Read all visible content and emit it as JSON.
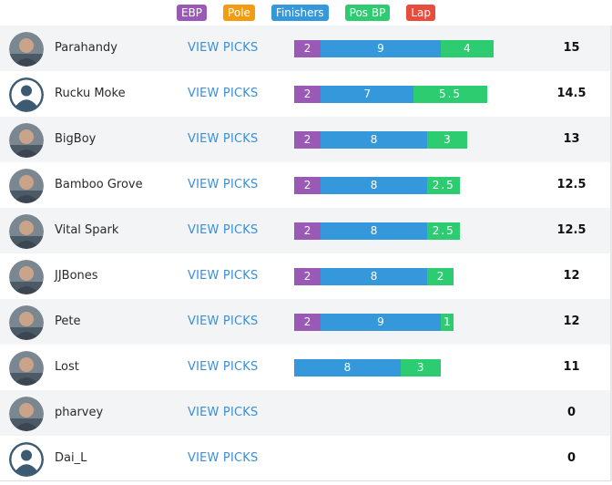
{
  "legend": [
    {
      "label": "EBP",
      "color": "#9b59b6"
    },
    {
      "label": "Pole",
      "color": "#f39c12"
    },
    {
      "label": "Finishers",
      "color": "#3498db"
    },
    {
      "label": "Pos BP",
      "color": "#2ecc71"
    },
    {
      "label": "Lap",
      "color": "#e74c3c"
    }
  ],
  "view_picks_label": "VIEW PICKS",
  "rows": [
    {
      "name": "Parahandy",
      "avatar": "photo-avatar",
      "score": "15",
      "segments": [
        {
          "type": "EBP",
          "label": "2",
          "value": 2
        },
        {
          "type": "Finishers",
          "label": "9",
          "value": 9
        },
        {
          "type": "Pos BP",
          "label": "4",
          "value": 4
        }
      ]
    },
    {
      "name": "Rucku Moke",
      "avatar": "default-avatar",
      "score": "14.5",
      "segments": [
        {
          "type": "EBP",
          "label": "2",
          "value": 2
        },
        {
          "type": "Finishers",
          "label": "7",
          "value": 7
        },
        {
          "type": "Pos BP",
          "label": "5.5",
          "value": 5.5
        }
      ]
    },
    {
      "name": "BigBoy",
      "avatar": "photo-avatar",
      "score": "13",
      "segments": [
        {
          "type": "EBP",
          "label": "2",
          "value": 2
        },
        {
          "type": "Finishers",
          "label": "8",
          "value": 8
        },
        {
          "type": "Pos BP",
          "label": "3",
          "value": 3
        }
      ]
    },
    {
      "name": "Bamboo Grove",
      "avatar": "photo-avatar",
      "score": "12.5",
      "segments": [
        {
          "type": "EBP",
          "label": "2",
          "value": 2
        },
        {
          "type": "Finishers",
          "label": "8",
          "value": 8
        },
        {
          "type": "Pos BP",
          "label": "2.5",
          "value": 2.5
        }
      ]
    },
    {
      "name": "Vital Spark",
      "avatar": "photo-avatar",
      "score": "12.5",
      "segments": [
        {
          "type": "EBP",
          "label": "2",
          "value": 2
        },
        {
          "type": "Finishers",
          "label": "8",
          "value": 8
        },
        {
          "type": "Pos BP",
          "label": "2.5",
          "value": 2.5
        }
      ]
    },
    {
      "name": "JJBones",
      "avatar": "photo-avatar",
      "score": "12",
      "segments": [
        {
          "type": "EBP",
          "label": "2",
          "value": 2
        },
        {
          "type": "Finishers",
          "label": "8",
          "value": 8
        },
        {
          "type": "Pos BP",
          "label": "2",
          "value": 2
        }
      ]
    },
    {
      "name": "Pete",
      "avatar": "photo-avatar",
      "score": "12",
      "segments": [
        {
          "type": "EBP",
          "label": "2",
          "value": 2
        },
        {
          "type": "Finishers",
          "label": "9",
          "value": 9
        },
        {
          "type": "Pos BP",
          "label": "1",
          "value": 1
        }
      ]
    },
    {
      "name": "Lost",
      "avatar": "photo-avatar",
      "score": "11",
      "segments": [
        {
          "type": "Finishers",
          "label": "8",
          "value": 8
        },
        {
          "type": "Pos BP",
          "label": "3",
          "value": 3
        }
      ]
    },
    {
      "name": "pharvey",
      "avatar": "photo-avatar",
      "score": "0",
      "segments": []
    },
    {
      "name": "Dai_L",
      "avatar": "default-avatar",
      "score": "0",
      "segments": []
    }
  ]
}
